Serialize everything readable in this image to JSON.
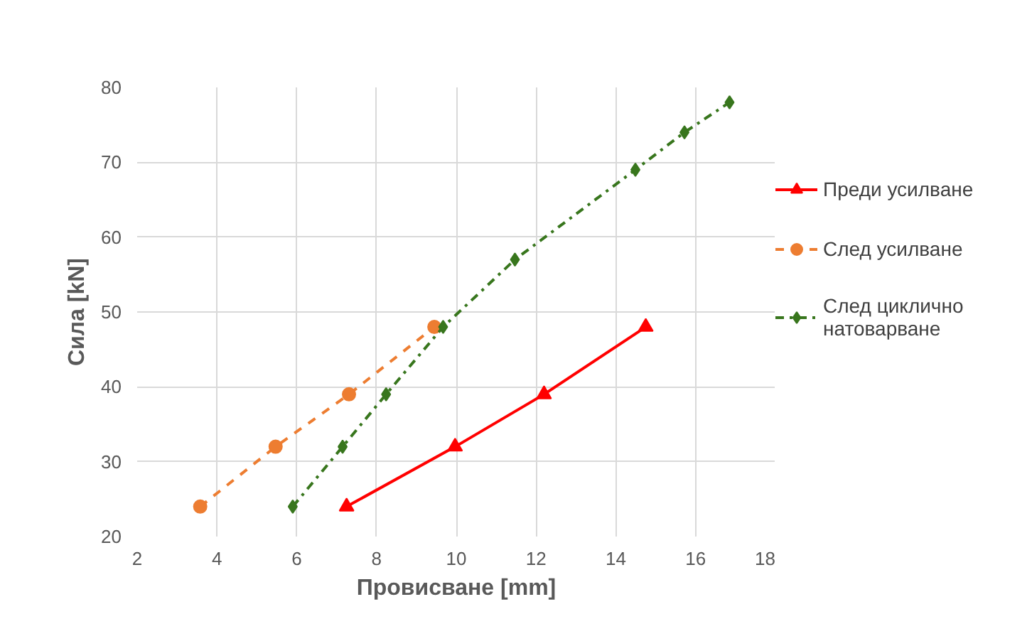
{
  "chart_data": {
    "type": "line",
    "xlabel": "Провисване [mm]",
    "ylabel": "Сила [kN]",
    "xlim": [
      2,
      18
    ],
    "xticks": [
      2,
      4,
      6,
      8,
      10,
      12,
      14,
      16,
      18
    ],
    "ylim": [
      20,
      80
    ],
    "yticks": [
      20,
      30,
      40,
      50,
      60,
      70,
      80
    ],
    "grid": true,
    "legend": "right",
    "series": [
      {
        "name": "Преди усилване",
        "color": "#ff0000",
        "marker": "triangle",
        "line_style": "solid",
        "x": [
          7.25,
          9.97,
          12.2,
          14.75
        ],
        "values": [
          24,
          32,
          39,
          48
        ]
      },
      {
        "name": "След усилване",
        "color": "#ed7d31",
        "marker": "circle",
        "line_style": "dashed",
        "x": [
          3.58,
          5.47,
          7.31,
          9.45
        ],
        "values": [
          24,
          32,
          39,
          48
        ]
      },
      {
        "name": "След циклично натоварване",
        "color": "#38761d",
        "marker": "diamond",
        "line_style": "dashdot",
        "x": [
          5.9,
          7.15,
          8.24,
          9.67,
          11.47,
          14.49,
          15.72,
          16.85
        ],
        "values": [
          24,
          32,
          39,
          48,
          57,
          69,
          74,
          78
        ]
      }
    ]
  }
}
